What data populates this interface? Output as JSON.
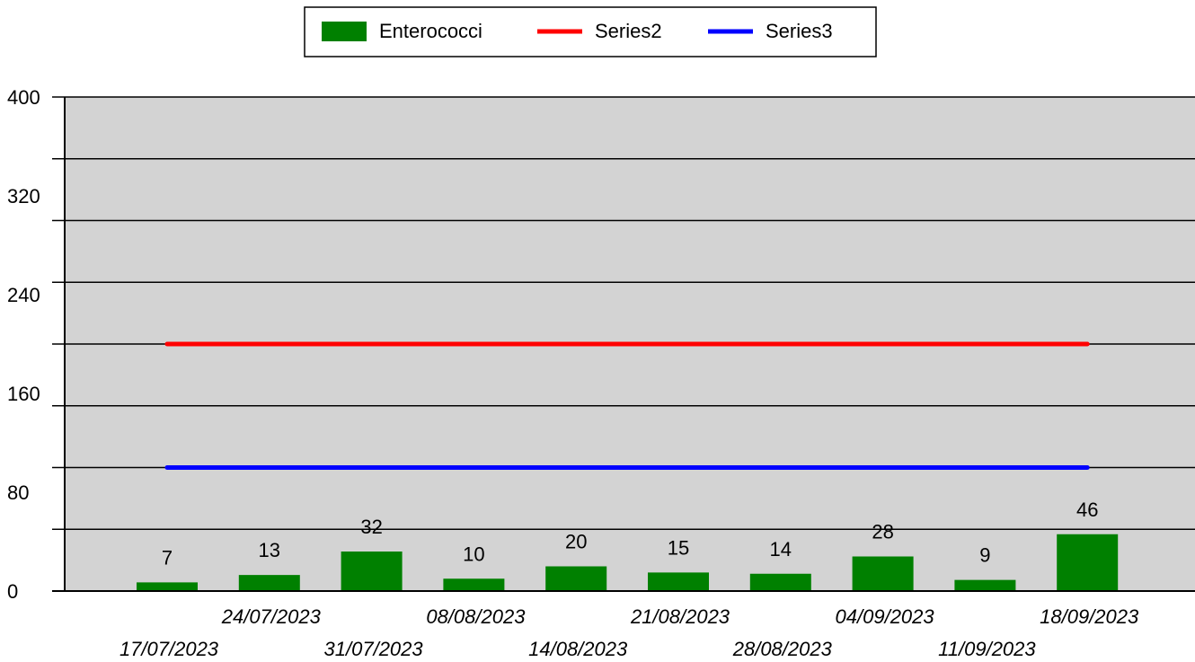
{
  "chart_data": {
    "type": "bar",
    "categories": [
      "17/07/2023",
      "24/07/2023",
      "31/07/2023",
      "08/08/2023",
      "14/08/2023",
      "21/08/2023",
      "28/08/2023",
      "04/09/2023",
      "11/09/2023",
      "18/09/2023"
    ],
    "series": [
      {
        "name": "Enterococci",
        "type": "bar",
        "color": "#008000",
        "values": [
          7,
          13,
          32,
          10,
          20,
          15,
          14,
          28,
          9,
          46
        ]
      },
      {
        "name": "Series2",
        "type": "line",
        "color": "#ff0000",
        "values": [
          200,
          200,
          200,
          200,
          200,
          200,
          200,
          200,
          200,
          200
        ]
      },
      {
        "name": "Series3",
        "type": "line",
        "color": "#0000ff",
        "values": [
          100,
          100,
          100,
          100,
          100,
          100,
          100,
          100,
          100,
          100
        ]
      }
    ],
    "ylim": [
      0,
      400
    ],
    "yticks": [
      0,
      80,
      160,
      240,
      320,
      400
    ],
    "gridlines": [
      50,
      100,
      150,
      200,
      250,
      300,
      350,
      400
    ],
    "grid": true,
    "plot_background": "#d3d3d3",
    "legend_position": "top-center",
    "xlabel": "",
    "ylabel": "",
    "title": ""
  }
}
